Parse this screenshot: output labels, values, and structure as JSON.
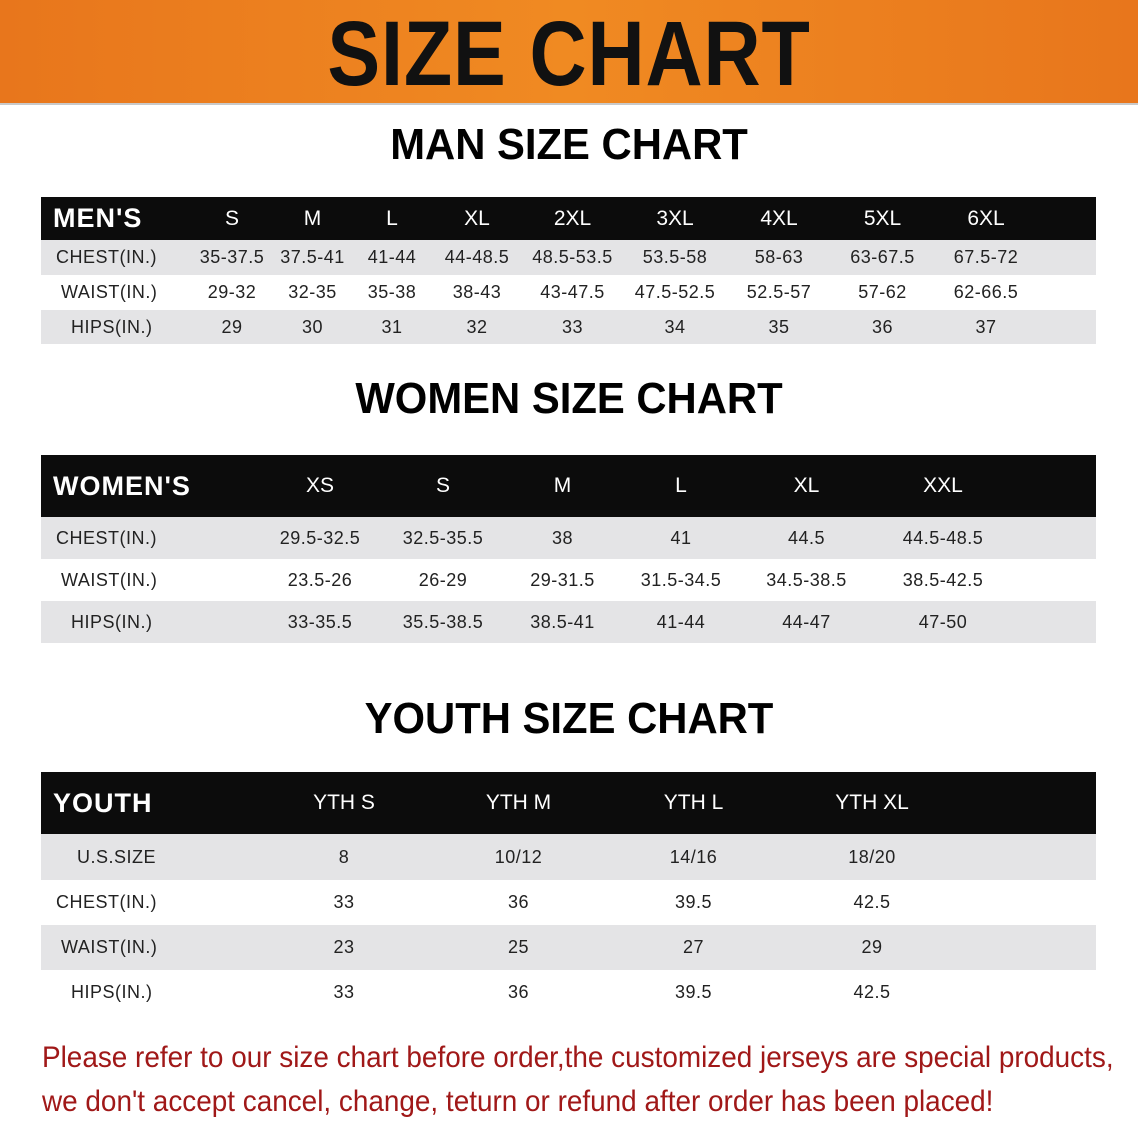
{
  "title": "SIZE CHART",
  "colors": {
    "banner": "#ec8020",
    "header_row": "#0c0c0c",
    "stripe": "#e4e4e6",
    "note": "#a01818"
  },
  "men": {
    "title": "MAN SIZE CHART",
    "header": "MEN'S",
    "sizes": [
      "S",
      "M",
      "L",
      "XL",
      "2XL",
      "3XL",
      "4XL",
      "5XL",
      "6XL"
    ],
    "rows": [
      {
        "label": "CHEST(IN.)",
        "values": [
          "35-37.5",
          "37.5-41",
          "41-44",
          "44-48.5",
          "48.5-53.5",
          "53.5-58",
          "58-63",
          "63-67.5",
          "67.5-72"
        ]
      },
      {
        "label": "WAIST(IN.)",
        "values": [
          "29-32",
          "32-35",
          "35-38",
          "38-43",
          "43-47.5",
          "47.5-52.5",
          "52.5-57",
          "57-62",
          "62-66.5"
        ]
      },
      {
        "label": "HIPS(IN.)",
        "values": [
          "29",
          "30",
          "31",
          "32",
          "33",
          "34",
          "35",
          "36",
          "37"
        ]
      }
    ]
  },
  "women": {
    "title": "WOMEN SIZE CHART",
    "header": "WOMEN'S",
    "sizes": [
      "XS",
      "S",
      "M",
      "L",
      "XL",
      "XXL"
    ],
    "rows": [
      {
        "label": "CHEST(IN.)",
        "values": [
          "29.5-32.5",
          "32.5-35.5",
          "38",
          "41",
          "44.5",
          "44.5-48.5"
        ]
      },
      {
        "label": "WAIST(IN.)",
        "values": [
          "23.5-26",
          "26-29",
          "29-31.5",
          "31.5-34.5",
          "34.5-38.5",
          "38.5-42.5"
        ]
      },
      {
        "label": "HIPS(IN.)",
        "values": [
          "33-35.5",
          "35.5-38.5",
          "38.5-41",
          "41-44",
          "44-47",
          "47-50"
        ]
      }
    ]
  },
  "youth": {
    "title": "YOUTH SIZE CHART",
    "header": "YOUTH",
    "sizes": [
      "YTH S",
      "YTH M",
      "YTH L",
      "YTH XL"
    ],
    "rows": [
      {
        "label": "U.S.SIZE",
        "values": [
          "8",
          "10/12",
          "14/16",
          "18/20"
        ]
      },
      {
        "label": "CHEST(IN.)",
        "values": [
          "33",
          "36",
          "39.5",
          "42.5"
        ]
      },
      {
        "label": "WAIST(IN.)",
        "values": [
          "23",
          "25",
          "27",
          "29"
        ]
      },
      {
        "label": "HIPS(IN.)",
        "values": [
          "33",
          "36",
          "39.5",
          "42.5"
        ]
      }
    ]
  },
  "note": {
    "line1": "Please refer to our size chart before order,the customized jerseys are special products,",
    "line2": "we don't accept cancel, change, teturn or refund after order has been placed!"
  }
}
